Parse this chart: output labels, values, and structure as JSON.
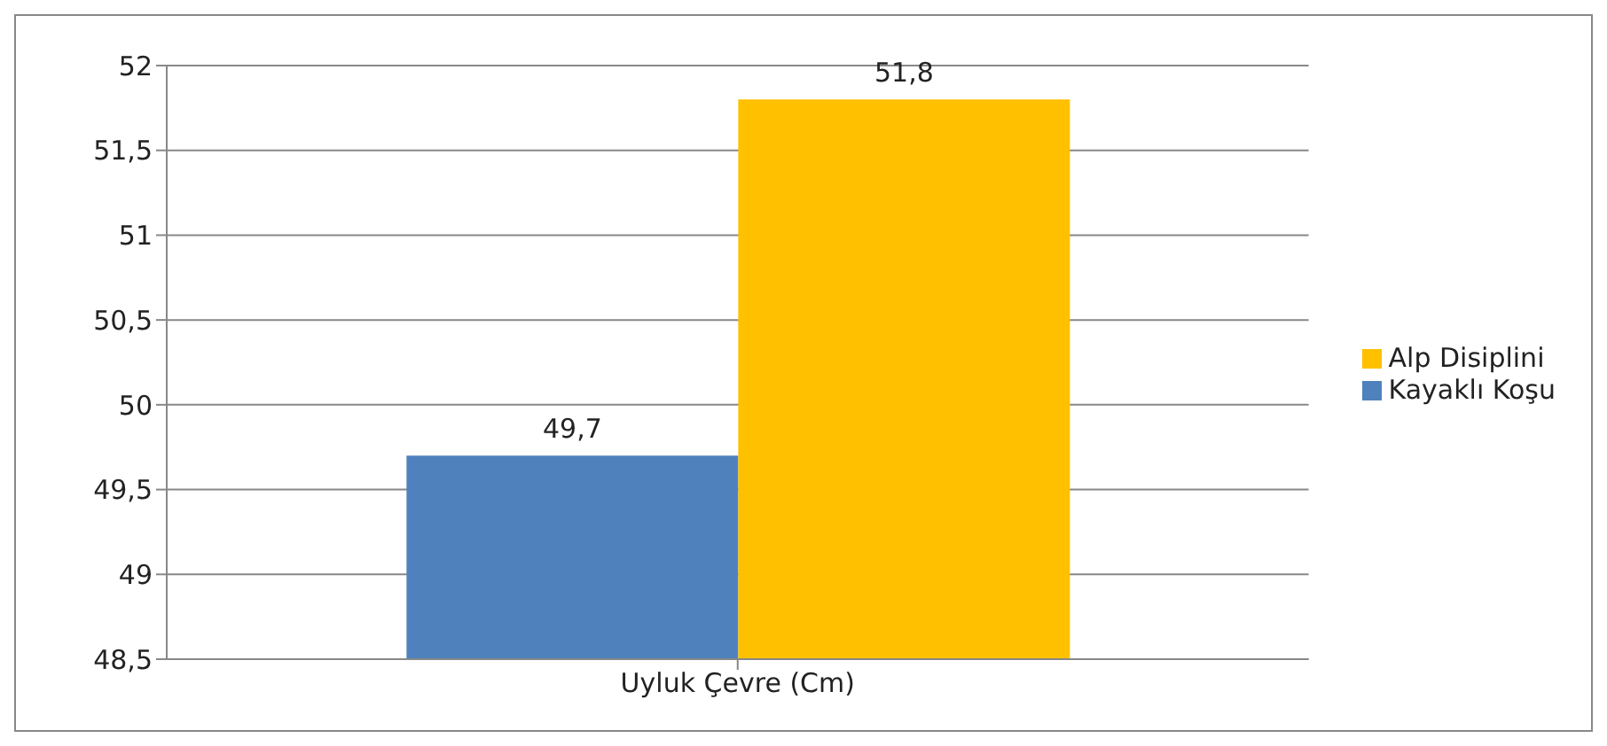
{
  "chart_data": {
    "type": "bar",
    "categories": [
      "Uyluk Çevre (Cm)"
    ],
    "series": [
      {
        "name": "Kayaklı Koşu",
        "color": "#4f81bd",
        "values": [
          49.7
        ],
        "value_labels": [
          "49,7"
        ]
      },
      {
        "name": "Alp Disiplini",
        "color": "#ffc000",
        "values": [
          51.8
        ],
        "value_labels": [
          "51,8"
        ]
      }
    ],
    "ylim": [
      48.5,
      52
    ],
    "yticks": [
      {
        "value": 48.5,
        "label": "48,5"
      },
      {
        "value": 49,
        "label": "49"
      },
      {
        "value": 49.5,
        "label": "49,5"
      },
      {
        "value": 50,
        "label": "50"
      },
      {
        "value": 50.5,
        "label": "50,5"
      },
      {
        "value": 51,
        "label": "51"
      },
      {
        "value": 51.5,
        "label": "51,5"
      },
      {
        "value": 52,
        "label": "52"
      }
    ],
    "grid": "y",
    "legend": "right"
  }
}
